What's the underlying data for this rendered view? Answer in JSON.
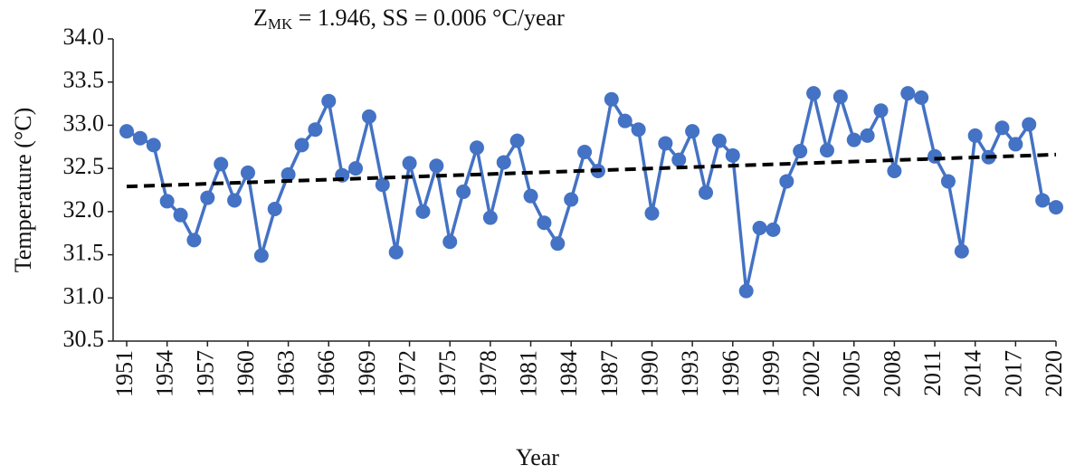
{
  "chart_data": {
    "type": "line",
    "title": {
      "main": "Z",
      "sub": "MK",
      "rest": " = 1.946, SS = 0.006 °C/year"
    },
    "x_label": "Year",
    "y_label": "Temperature (°C)",
    "x": [
      1951,
      1952,
      1953,
      1954,
      1955,
      1956,
      1957,
      1958,
      1959,
      1960,
      1961,
      1962,
      1963,
      1964,
      1965,
      1966,
      1967,
      1968,
      1969,
      1970,
      1971,
      1972,
      1973,
      1974,
      1975,
      1976,
      1977,
      1978,
      1979,
      1980,
      1981,
      1982,
      1983,
      1984,
      1985,
      1986,
      1987,
      1988,
      1989,
      1990,
      1991,
      1992,
      1993,
      1994,
      1995,
      1996,
      1997,
      1998,
      1999,
      2000,
      2001,
      2002,
      2003,
      2004,
      2005,
      2006,
      2007,
      2008,
      2009,
      2010,
      2011,
      2012,
      2013,
      2014,
      2015,
      2016,
      2017,
      2018,
      2019,
      2020
    ],
    "series": [
      {
        "color": "#4472c4",
        "values": [
          32.93,
          32.85,
          32.77,
          32.12,
          31.96,
          31.67,
          32.16,
          32.55,
          32.13,
          32.45,
          31.49,
          32.03,
          32.43,
          32.77,
          32.95,
          33.28,
          32.42,
          32.5,
          33.1,
          32.31,
          31.53,
          32.56,
          32.0,
          32.53,
          31.65,
          32.23,
          32.74,
          31.93,
          32.57,
          32.82,
          32.18,
          31.87,
          31.63,
          32.14,
          32.69,
          32.47,
          33.3,
          33.05,
          32.95,
          31.98,
          32.79,
          32.6,
          32.93,
          32.22,
          32.82,
          32.65,
          31.08,
          31.81,
          31.79,
          32.35,
          32.7,
          33.37,
          32.71,
          33.33,
          32.83,
          32.88,
          33.17,
          32.47,
          33.37,
          33.32,
          32.64,
          32.35,
          31.54,
          32.88,
          32.63,
          32.97,
          32.78,
          33.01,
          32.13,
          32.05
        ]
      }
    ],
    "trend": {
      "color": "#000000",
      "x": [
        1951,
        2020
      ],
      "values": [
        32.29,
        32.66
      ]
    },
    "xlim": [
      1951,
      2020
    ],
    "xticks": [
      1951,
      1954,
      1957,
      1960,
      1963,
      1966,
      1969,
      1972,
      1975,
      1978,
      1981,
      1984,
      1987,
      1990,
      1993,
      1996,
      1999,
      2002,
      2005,
      2008,
      2011,
      2014,
      2017,
      2020
    ],
    "ylim": [
      30.5,
      34.0
    ],
    "yticks": [
      {
        "value": 30.5,
        "label": "30.5"
      },
      {
        "value": 31.0,
        "label": "31.0"
      },
      {
        "value": 31.5,
        "label": "31.5"
      },
      {
        "value": 32.0,
        "label": "32.0"
      },
      {
        "value": 32.5,
        "label": "32.5"
      },
      {
        "value": 33.0,
        "label": "33.0"
      },
      {
        "value": 33.5,
        "label": "33.5"
      },
      {
        "value": 34.0,
        "label": "34.0"
      }
    ],
    "grid": false
  }
}
